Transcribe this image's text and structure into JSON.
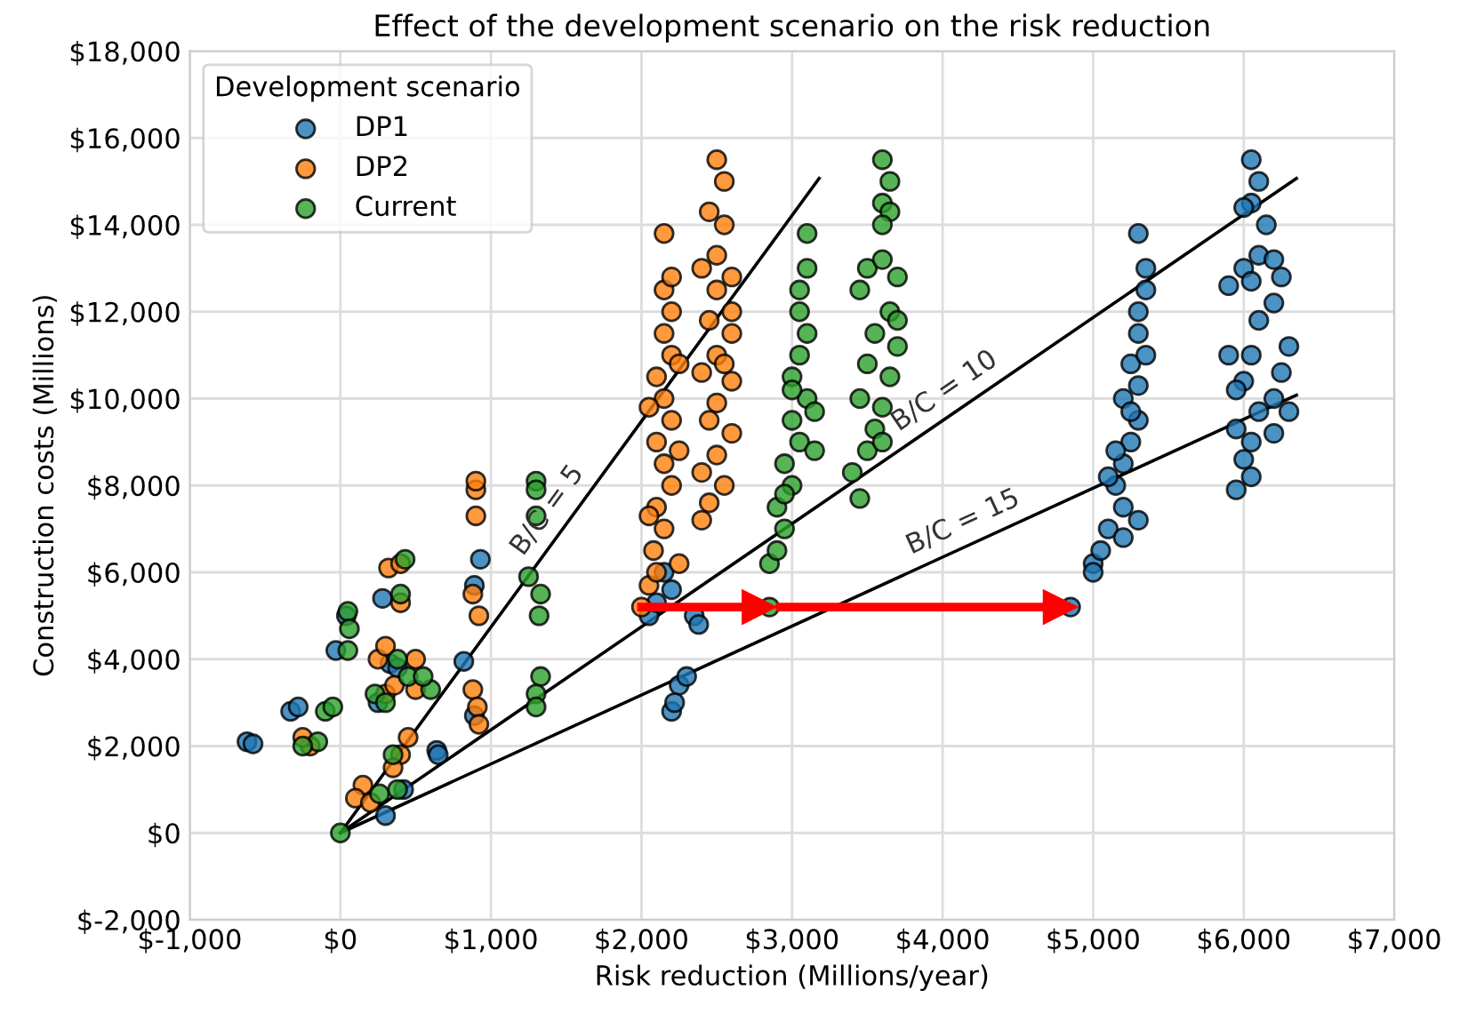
{
  "chart_data": {
    "type": "scatter",
    "title": "Effect of the development scenario on the risk reduction",
    "xlabel": "Risk reduction (Millions/year)",
    "ylabel": "Construction costs (Millions)",
    "legend_title": "Development scenario",
    "legend": "top left",
    "grid": true,
    "marker": "circle",
    "xlim": [
      -1000,
      7000
    ],
    "ylim": [
      -2000,
      18000
    ],
    "xticks": [
      {
        "value": -1000,
        "label": "$-1,000"
      },
      {
        "value": 0,
        "label": "$0"
      },
      {
        "value": 1000,
        "label": "$1,000"
      },
      {
        "value": 2000,
        "label": "$2,000"
      },
      {
        "value": 3000,
        "label": "$3,000"
      },
      {
        "value": 4000,
        "label": "$4,000"
      },
      {
        "value": 5000,
        "label": "$5,000"
      },
      {
        "value": 6000,
        "label": "$6,000"
      },
      {
        "value": 7000,
        "label": "$7,000"
      }
    ],
    "yticks": [
      {
        "value": -2000,
        "label": "$-2,000"
      },
      {
        "value": 0,
        "label": "$0"
      },
      {
        "value": 2000,
        "label": "$2,000"
      },
      {
        "value": 4000,
        "label": "$4,000"
      },
      {
        "value": 6000,
        "label": "$6,000"
      },
      {
        "value": 8000,
        "label": "$8,000"
      },
      {
        "value": 10000,
        "label": "$10,000"
      },
      {
        "value": 12000,
        "label": "$12,000"
      },
      {
        "value": 14000,
        "label": "$14,000"
      },
      {
        "value": 16000,
        "label": "$16,000"
      },
      {
        "value": 18000,
        "label": "$18,000"
      }
    ],
    "annotations": [
      {
        "text": "B/C = 5",
        "x": 1500,
        "y": 7108
      },
      {
        "text": "B/C = 10",
        "x": 4100,
        "y": 9730
      },
      {
        "text": "B/C = 15",
        "x": 4200,
        "y": 6667
      }
    ],
    "series": [
      {
        "type": "line",
        "color": "#000000",
        "marker": "none",
        "x": [
          0,
          3180
        ],
        "values": [
          0,
          15070
        ]
      },
      {
        "type": "line",
        "color": "#000000",
        "marker": "none",
        "x": [
          0,
          6350
        ],
        "values": [
          0,
          15070
        ]
      },
      {
        "type": "line",
        "color": "#000000",
        "marker": "none",
        "x": [
          0,
          6350
        ],
        "values": [
          0,
          10080
        ]
      },
      {
        "name": "DP1",
        "color": "#1f77b4",
        "x": [
          -620,
          -580,
          -330,
          -280,
          330,
          380,
          -30,
          40,
          280,
          420,
          640,
          650,
          250,
          820,
          890,
          930,
          890,
          300,
          2050,
          2100,
          2200,
          2350,
          2380,
          2250,
          2300,
          2200,
          2220,
          2150,
          4850,
          5000,
          5050,
          5100,
          5200,
          5150,
          5200,
          5250,
          5300,
          5200,
          5300,
          5250,
          5350,
          5300,
          5300,
          5350,
          5350,
          5300,
          5150,
          5100,
          5250,
          5200,
          5000,
          5300,
          6050,
          6100,
          6050,
          6000,
          6150,
          6100,
          6200,
          6000,
          5900,
          6050,
          6250,
          6200,
          6100,
          5900,
          6050,
          6300,
          6250,
          6000,
          6200,
          5950,
          6100,
          6300,
          5950,
          6050,
          6000,
          6050,
          5950,
          6200
        ],
        "values": [
          2100,
          2050,
          2800,
          2900,
          3900,
          3800,
          4200,
          5000,
          5400,
          1000,
          1900,
          1800,
          3000,
          3950,
          5700,
          6300,
          2700,
          400,
          5000,
          5300,
          5600,
          5000,
          4800,
          3400,
          3600,
          2800,
          3000,
          6000,
          5200,
          6200,
          6500,
          7000,
          7500,
          8000,
          8500,
          9000,
          9500,
          10000,
          10300,
          10800,
          11000,
          11500,
          12000,
          12500,
          13000,
          13800,
          8800,
          8200,
          9700,
          6800,
          6000,
          7200,
          15500,
          15000,
          14500,
          14400,
          14000,
          13300,
          13200,
          13000,
          12600,
          12700,
          12800,
          12200,
          11800,
          11000,
          11000,
          11200,
          10600,
          10400,
          10000,
          10200,
          9700,
          9700,
          9300,
          9000,
          8600,
          8200,
          7900,
          9200
        ]
      },
      {
        "name": "DP2",
        "color": "#ff7f0e",
        "x": [
          -200,
          -250,
          150,
          100,
          200,
          400,
          350,
          450,
          300,
          360,
          500,
          250,
          300,
          500,
          400,
          320,
          400,
          900,
          900,
          900,
          880,
          920,
          880,
          910,
          920,
          2000,
          2050,
          2100,
          2080,
          2150,
          2100,
          2200,
          2150,
          2100,
          2200,
          2150,
          2100,
          2200,
          2150,
          2200,
          2150,
          2200,
          2150,
          2050,
          2250,
          2250,
          2050,
          2250,
          2500,
          2550,
          2450,
          2550,
          2500,
          2400,
          2600,
          2500,
          2450,
          2600,
          2500,
          2400,
          2600,
          2500,
          2450,
          2600,
          2500,
          2400,
          2550,
          2450,
          2400,
          2600,
          2550
        ],
        "values": [
          2000,
          2200,
          1100,
          800,
          700,
          1800,
          1500,
          2200,
          3200,
          3400,
          3300,
          4000,
          4300,
          4000,
          5300,
          6100,
          6200,
          7300,
          7900,
          8100,
          5500,
          5000,
          3300,
          2900,
          2500,
          5200,
          5700,
          6000,
          6500,
          7000,
          7500,
          8000,
          8500,
          9000,
          9500,
          10000,
          10500,
          11000,
          11500,
          12000,
          12500,
          12800,
          13800,
          7300,
          8800,
          6200,
          9800,
          10800,
          15500,
          15000,
          14300,
          14000,
          13300,
          13000,
          12800,
          12500,
          11800,
          11500,
          11000,
          10600,
          10400,
          9900,
          9500,
          9200,
          8700,
          8300,
          8000,
          7600,
          7200,
          12000,
          10800
        ]
      },
      {
        "name": "Current",
        "color": "#2ca02c",
        "x": [
          -150,
          -250,
          -100,
          -50,
          0,
          50,
          50,
          60,
          430,
          400,
          380,
          230,
          300,
          350,
          260,
          450,
          600,
          1300,
          1300,
          1300,
          1250,
          1330,
          1320,
          1330,
          1300,
          1300,
          380,
          550,
          2850,
          2850,
          2900,
          2950,
          2900,
          3000,
          2950,
          3050,
          3000,
          3100,
          3000,
          3050,
          3100,
          3050,
          3050,
          3100,
          3100,
          2950,
          3150,
          3000,
          3150,
          3600,
          3650,
          3600,
          3650,
          3600,
          3500,
          3700,
          3600,
          3450,
          3650,
          3550,
          3700,
          3500,
          3650,
          3450,
          3600,
          3550,
          3500,
          3400,
          3450,
          3600,
          3700
        ],
        "values": [
          2100,
          2000,
          2800,
          2900,
          0,
          4200,
          5100,
          4700,
          6300,
          5500,
          4000,
          3200,
          3000,
          1800,
          900,
          3600,
          3300,
          8100,
          7900,
          7300,
          5900,
          5500,
          5000,
          3600,
          3200,
          2900,
          1000,
          3600,
          5200,
          6200,
          6500,
          7000,
          7500,
          8000,
          8500,
          9000,
          9500,
          10000,
          10500,
          11000,
          11500,
          12000,
          12500,
          13000,
          13800,
          7800,
          8800,
          10200,
          9700,
          15500,
          15000,
          14500,
          14300,
          14000,
          13000,
          12800,
          13200,
          12500,
          12000,
          11500,
          11200,
          10800,
          10500,
          10000,
          9800,
          9300,
          8800,
          8300,
          7700,
          9000,
          11800
        ]
      },
      {
        "type": "line",
        "color": "#ff0000",
        "marker": "triangle",
        "x": [
          2000,
          2780
        ],
        "values": [
          5200,
          5200
        ]
      },
      {
        "type": "line",
        "color": "#ff0000",
        "marker": "triangle",
        "x": [
          2920,
          4780
        ],
        "values": [
          5200,
          5200
        ]
      }
    ]
  }
}
